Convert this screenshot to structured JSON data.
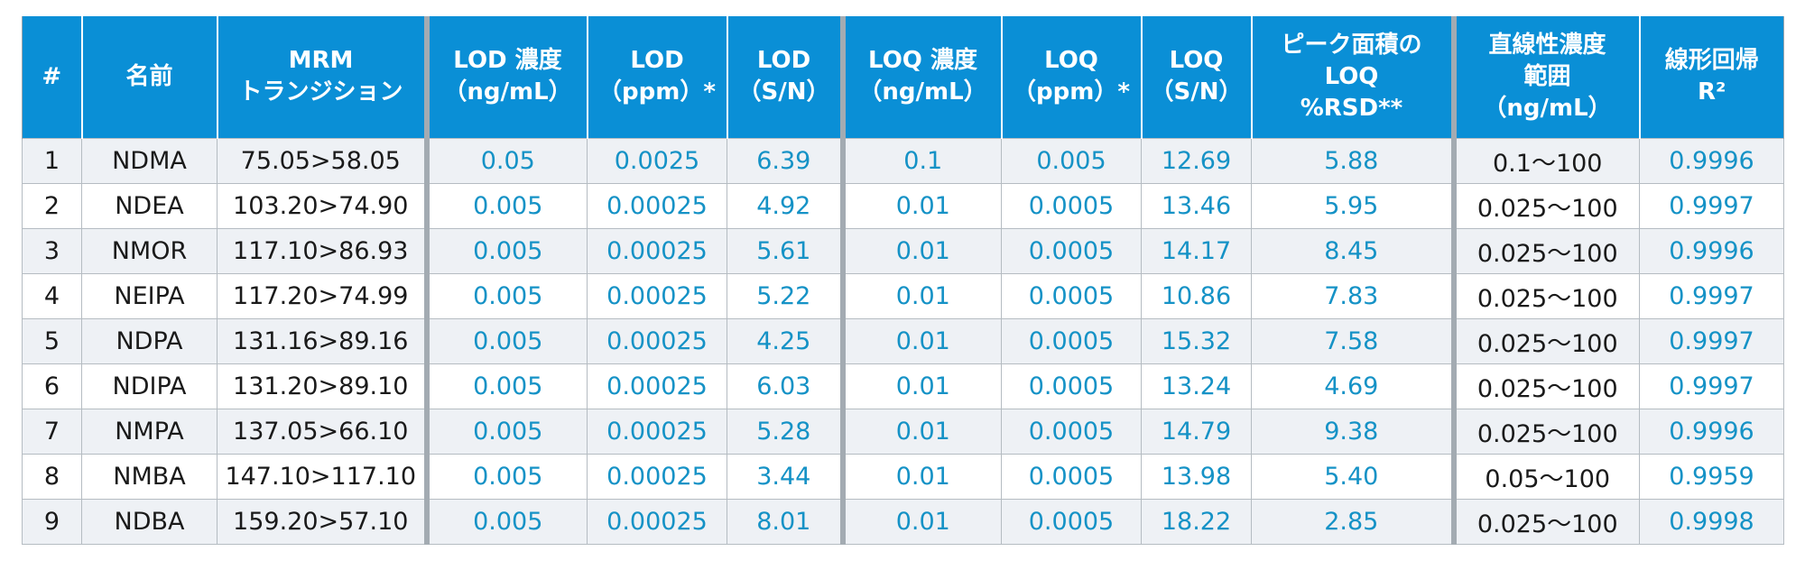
{
  "table": {
    "headers": [
      {
        "id": "index",
        "lines": [
          "#"
        ]
      },
      {
        "id": "name",
        "lines": [
          "名前"
        ]
      },
      {
        "id": "mrm",
        "lines": [
          "MRM",
          "トランジション"
        ]
      },
      {
        "id": "lod_conc",
        "lines": [
          "LOD 濃度",
          "（ng/mL）"
        ]
      },
      {
        "id": "lod_ppm",
        "lines": [
          "LOD",
          "（ppm）*"
        ]
      },
      {
        "id": "lod_sn",
        "lines": [
          "LOD",
          "（S/N）"
        ]
      },
      {
        "id": "loq_conc",
        "lines": [
          "LOQ 濃度",
          "（ng/mL）"
        ]
      },
      {
        "id": "loq_ppm",
        "lines": [
          "LOQ",
          "（ppm）*"
        ]
      },
      {
        "id": "loq_sn",
        "lines": [
          "LOQ",
          "（S/N）"
        ]
      },
      {
        "id": "loq_rsd",
        "lines": [
          "ピーク面積の",
          "LOQ",
          "%RSD**"
        ]
      },
      {
        "id": "linear_range",
        "lines": [
          "直線性濃度",
          "範囲",
          "（ng/mL）"
        ]
      },
      {
        "id": "r2",
        "lines": [
          "線形回帰",
          "R²"
        ]
      }
    ],
    "rows": [
      [
        "1",
        "NDMA",
        "75.05>58.05",
        "0.05",
        "0.0025",
        "6.39",
        "0.1",
        "0.005",
        "12.69",
        "5.88",
        "0.1～100",
        "0.9996"
      ],
      [
        "2",
        "NDEA",
        "103.20>74.90",
        "0.005",
        "0.00025",
        "4.92",
        "0.01",
        "0.0005",
        "13.46",
        "5.95",
        "0.025～100",
        "0.9997"
      ],
      [
        "3",
        "NMOR",
        "117.10>86.93",
        "0.005",
        "0.00025",
        "5.61",
        "0.01",
        "0.0005",
        "14.17",
        "8.45",
        "0.025～100",
        "0.9996"
      ],
      [
        "4",
        "NEIPA",
        "117.20>74.99",
        "0.005",
        "0.00025",
        "5.22",
        "0.01",
        "0.0005",
        "10.86",
        "7.83",
        "0.025～100",
        "0.9997"
      ],
      [
        "5",
        "NDPA",
        "131.16>89.16",
        "0.005",
        "0.00025",
        "4.25",
        "0.01",
        "0.0005",
        "15.32",
        "7.58",
        "0.025～100",
        "0.9997"
      ],
      [
        "6",
        "NDIPA",
        "131.20>89.10",
        "0.005",
        "0.00025",
        "6.03",
        "0.01",
        "0.0005",
        "13.24",
        "4.69",
        "0.025～100",
        "0.9997"
      ],
      [
        "7",
        "NMPA",
        "137.05>66.10",
        "0.005",
        "0.00025",
        "5.28",
        "0.01",
        "0.0005",
        "14.79",
        "9.38",
        "0.025～100",
        "0.9996"
      ],
      [
        "8",
        "NMBA",
        "147.10>117.10",
        "0.005",
        "0.00025",
        "3.44",
        "0.01",
        "0.0005",
        "13.98",
        "5.40",
        "0.05～100",
        "0.9959"
      ],
      [
        "9",
        "NDBA",
        "159.20>57.10",
        "0.005",
        "0.00025",
        "8.01",
        "0.01",
        "0.0005",
        "18.22",
        "2.85",
        "0.025～100",
        "0.9998"
      ]
    ]
  },
  "colors": {
    "header_bg": "#0a8fd6",
    "header_text": "#ffffff",
    "value_blue": "#1592c6",
    "value_dark": "#1a1a1a",
    "row_alt": "#eef1f5"
  }
}
